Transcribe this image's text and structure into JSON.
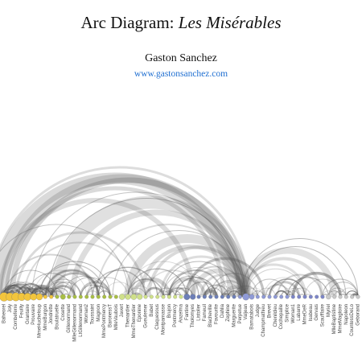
{
  "header": {
    "title_prefix": "Arc Diagram:",
    "title_emph": "Les Misérables",
    "author": "Gaston Sanchez",
    "website": "www.gastonsanchez.com"
  },
  "group_colors": [
    "#f2c53d",
    "#a9bf45",
    "#cfe08a",
    "#6d7fb8",
    "#8f9ad6",
    "#7d86c8",
    "#c9c9c9"
  ],
  "labeled_nodes": [
    {
      "label": "Baheorel",
      "group": 0
    },
    {
      "label": "Joly",
      "group": 0
    },
    {
      "label": "Combeferre",
      "group": 0
    },
    {
      "label": "Feuilly",
      "group": 0
    },
    {
      "label": "Grantaire",
      "group": 0
    },
    {
      "label": "Prouvaire",
      "group": 0
    },
    {
      "label": "MmeHucheloup",
      "group": 0
    },
    {
      "label": "MmeBurgon",
      "group": 0
    },
    {
      "label": "Jondrette",
      "group": 0
    },
    {
      "label": "Boulatruelle",
      "group": 1
    },
    {
      "label": "Cosette",
      "group": 1
    },
    {
      "label": "Gillenormand",
      "group": 1
    },
    {
      "label": "MlleGillenormand",
      "group": 1
    },
    {
      "label": "LtGillenormand",
      "group": 1
    },
    {
      "label": "Woman2",
      "group": 1
    },
    {
      "label": "Toussaint",
      "group": 1
    },
    {
      "label": "Magnon",
      "group": 1
    },
    {
      "label": "MmePontmercy",
      "group": 1
    },
    {
      "label": "BaronessT",
      "group": 1
    },
    {
      "label": "MlleVaubois",
      "group": 1
    },
    {
      "label": "Javert",
      "group": 2
    },
    {
      "label": "Thenardier",
      "group": 2
    },
    {
      "label": "MmeThenardier",
      "group": 2
    },
    {
      "label": "Eponine",
      "group": 2
    },
    {
      "label": "Gueulemer",
      "group": 2
    },
    {
      "label": "Babet",
      "group": 2
    },
    {
      "label": "Claquesous",
      "group": 2
    },
    {
      "label": "Montparnasse",
      "group": 2
    },
    {
      "label": "Brujon",
      "group": 2
    },
    {
      "label": "Pontmercy",
      "group": 2
    },
    {
      "label": "Anzelma",
      "group": 2
    },
    {
      "label": "Fantine",
      "group": 3
    },
    {
      "label": "Tholomyes",
      "group": 3
    },
    {
      "label": "Listolier",
      "group": 3
    },
    {
      "label": "Fameuil",
      "group": 3
    },
    {
      "label": "Blacheville",
      "group": 3
    },
    {
      "label": "Favourite",
      "group": 3
    },
    {
      "label": "Dahlia",
      "group": 3
    },
    {
      "label": "Zephine",
      "group": 3
    },
    {
      "label": "Marguerite",
      "group": 3
    },
    {
      "label": "Perpetue",
      "group": 4
    },
    {
      "label": "Valjean",
      "group": 4
    },
    {
      "label": "Bamatabois",
      "group": 4
    },
    {
      "label": "Judge",
      "group": 4
    },
    {
      "label": "Champmathieu",
      "group": 4
    },
    {
      "label": "Brevet",
      "group": 4
    },
    {
      "label": "Chenildieu",
      "group": 4
    },
    {
      "label": "Cochepaille",
      "group": 4
    },
    {
      "label": "Simplice",
      "group": 4
    },
    {
      "label": "Woman1",
      "group": 5
    },
    {
      "label": "Labarre",
      "group": 5
    },
    {
      "label": "MmeDeR",
      "group": 5
    },
    {
      "label": "Isabeau",
      "group": 5
    },
    {
      "label": "Gervais",
      "group": 5
    },
    {
      "label": "Scaufflaire",
      "group": 5
    },
    {
      "label": "Myriel",
      "group": 6
    },
    {
      "label": "MlleBaptistine",
      "group": 6
    },
    {
      "label": "MmeMagloire",
      "group": 6
    },
    {
      "label": "Napoleon",
      "group": 6
    },
    {
      "label": "CountessDeLo",
      "group": 6
    },
    {
      "label": "Geborand",
      "group": 6
    }
  ]
}
